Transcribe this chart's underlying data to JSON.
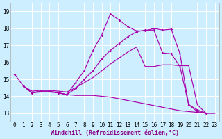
{
  "xlabel": "Windchill (Refroidissement éolien,°C)",
  "background_color": "#cceeff",
  "grid_color": "#ffffff",
  "line_color": "#aa00aa",
  "xlim": [
    -0.5,
    23.5
  ],
  "ylim": [
    12.5,
    19.5
  ],
  "xticks": [
    0,
    1,
    2,
    3,
    4,
    5,
    6,
    7,
    8,
    9,
    10,
    11,
    12,
    13,
    14,
    15,
    16,
    17,
    18,
    19,
    20,
    21,
    22,
    23
  ],
  "yticks": [
    13,
    14,
    15,
    16,
    17,
    18,
    19
  ],
  "line1_x": [
    0,
    1,
    2,
    3,
    4,
    5,
    6,
    7,
    8,
    9,
    10,
    11,
    12,
    13,
    14,
    15,
    16,
    17,
    18,
    19,
    20,
    21,
    22
  ],
  "line1_y": [
    15.3,
    14.6,
    14.2,
    14.3,
    14.3,
    14.2,
    14.1,
    14.8,
    15.5,
    16.7,
    17.6,
    18.85,
    18.5,
    18.1,
    17.85,
    17.85,
    18.0,
    17.9,
    17.95,
    16.5,
    13.5,
    13.2,
    13.0
  ],
  "line2_x": [
    1,
    2,
    3,
    4,
    5,
    6,
    7,
    8,
    9,
    10,
    11,
    12,
    13,
    14,
    15,
    16,
    17,
    18,
    19,
    20,
    21,
    22
  ],
  "line2_y": [
    14.6,
    14.2,
    14.3,
    14.3,
    14.2,
    14.1,
    14.45,
    15.0,
    15.5,
    16.2,
    16.7,
    17.1,
    17.5,
    17.8,
    17.9,
    17.9,
    16.55,
    16.5,
    15.75,
    13.5,
    13.1,
    13.0
  ],
  "line3_x": [
    1,
    2,
    3,
    4,
    5,
    6,
    7,
    8,
    9,
    10,
    11,
    12,
    13,
    14,
    15,
    16,
    17,
    18,
    19,
    20,
    21,
    22,
    23
  ],
  "line3_y": [
    14.6,
    14.2,
    14.25,
    14.25,
    14.2,
    14.1,
    14.05,
    14.05,
    14.05,
    14.0,
    13.95,
    13.85,
    13.75,
    13.65,
    13.55,
    13.45,
    13.35,
    13.25,
    13.15,
    13.1,
    13.05,
    13.0,
    13.0
  ],
  "line4_x": [
    1,
    2,
    3,
    4,
    5,
    6,
    7,
    8,
    9,
    10,
    11,
    12,
    13,
    14,
    15,
    16,
    17,
    18,
    19,
    20,
    21,
    22,
    23
  ],
  "line4_y": [
    14.6,
    14.3,
    14.35,
    14.35,
    14.3,
    14.25,
    14.5,
    14.8,
    15.1,
    15.5,
    15.9,
    16.25,
    16.6,
    16.9,
    15.75,
    15.75,
    15.85,
    15.85,
    15.8,
    15.8,
    13.5,
    13.0,
    13.0
  ],
  "fontsize_ticks": 5.5,
  "fontsize_xlabel": 6.0
}
